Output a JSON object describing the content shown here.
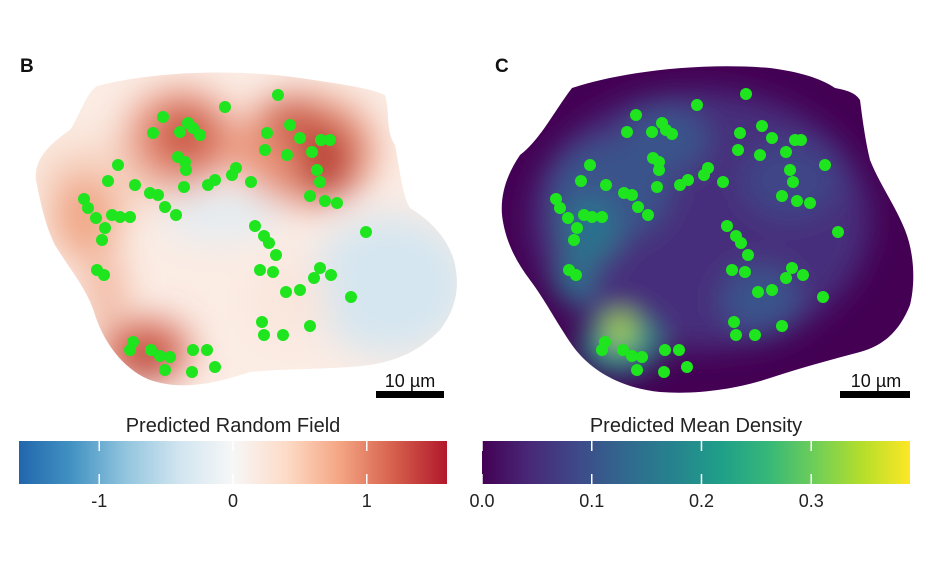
{
  "panels": [
    {
      "letter": "B",
      "colorbar": {
        "title": "Predicted Random Field",
        "ticks": [
          {
            "value": -1,
            "label": "-1"
          },
          {
            "value": 0,
            "label": "0"
          },
          {
            "value": 1,
            "label": "1"
          }
        ],
        "range": [
          -1.6,
          1.6
        ],
        "colormap": [
          "#2166ac",
          "#4393c3",
          "#92c5de",
          "#d1e5f0",
          "#f7f7f7",
          "#fddbc7",
          "#f4a582",
          "#d6604d",
          "#b2182b"
        ]
      },
      "scale_bar": {
        "label": "10 µm"
      }
    },
    {
      "letter": "C",
      "colorbar": {
        "title": "Predicted Mean Density",
        "ticks": [
          {
            "value": 0.0,
            "label": "0.0"
          },
          {
            "value": 0.1,
            "label": "0.1"
          },
          {
            "value": 0.2,
            "label": "0.2"
          },
          {
            "value": 0.3,
            "label": "0.3"
          }
        ],
        "range": [
          0.0,
          0.39
        ],
        "colormap": [
          "#440154",
          "#482878",
          "#3e4989",
          "#31688e",
          "#26828e",
          "#1f9e89",
          "#35b779",
          "#6ece58",
          "#b5de2b",
          "#fde725"
        ]
      },
      "scale_bar": {
        "label": "10 µm"
      }
    }
  ],
  "point_color": "#1ee51e",
  "chart_data": [
    {
      "type": "heatmap",
      "title": "",
      "legend_title": "Predicted Random Field",
      "color_range": [
        -1.6,
        1.6
      ],
      "hotspots": [
        {
          "x": 0.43,
          "y": 0.78,
          "value": 1.5
        },
        {
          "x": 0.78,
          "y": 0.22,
          "value": 1.4
        },
        {
          "x": 0.42,
          "y": 0.2,
          "value": 1.3
        },
        {
          "x": 0.17,
          "y": 0.44,
          "value": 1.0
        },
        {
          "x": 0.8,
          "y": 0.62,
          "value": -0.4
        }
      ]
    },
    {
      "type": "heatmap",
      "title": "",
      "legend_title": "Predicted Mean Density",
      "color_range": [
        0.0,
        0.39
      ]
    }
  ]
}
